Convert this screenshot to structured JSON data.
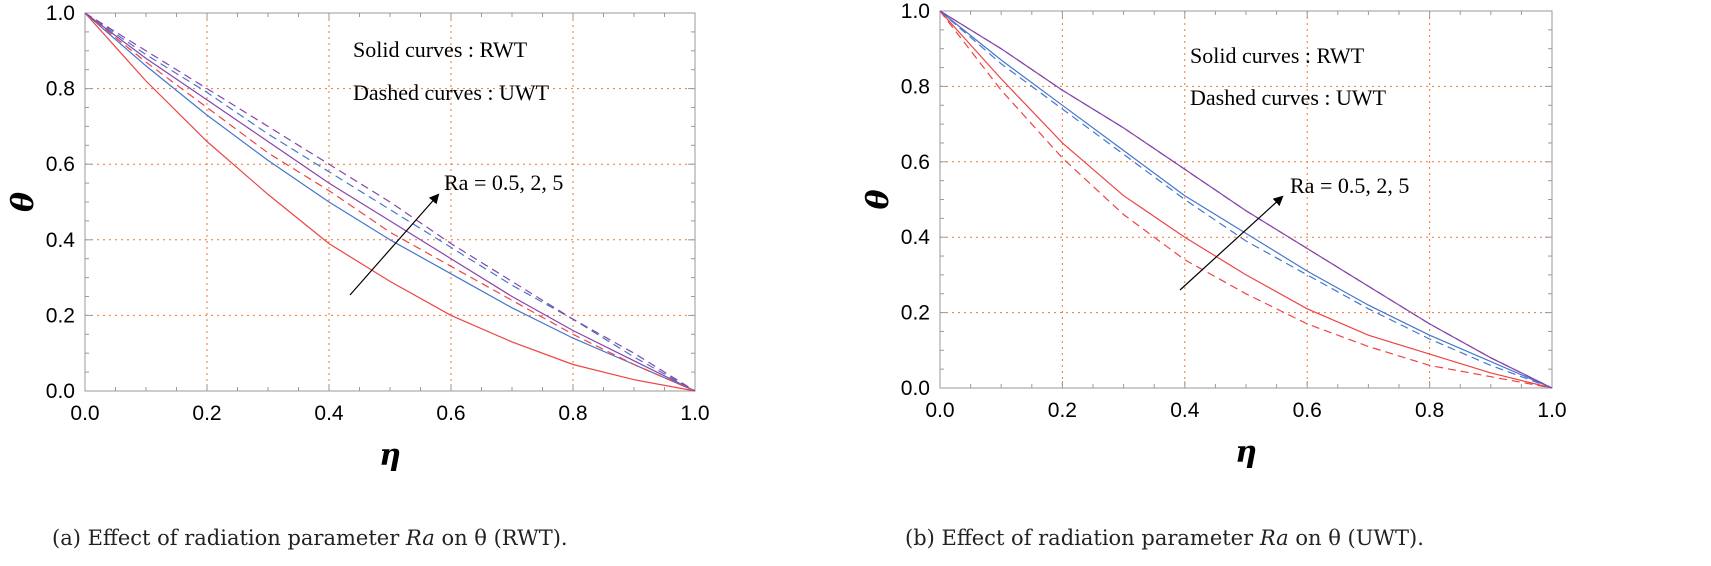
{
  "chart_data": [
    {
      "type": "line",
      "panel": "a",
      "xlabel": "η",
      "ylabel": "θ",
      "xlim": [
        0.0,
        1.0
      ],
      "ylim": [
        0.0,
        1.0
      ],
      "xticks": [
        "0.0",
        "0.2",
        "0.4",
        "0.6",
        "0.8",
        "1.0"
      ],
      "yticks": [
        "0.0",
        "0.2",
        "0.4",
        "0.6",
        "0.8",
        "1.0"
      ],
      "grid": true,
      "legend_lines": [
        "Solid curves : RWT",
        "Dashed curves : UWT"
      ],
      "annotation": "Ra = 0.5, 2, 5",
      "x": [
        0.0,
        0.1,
        0.2,
        0.3,
        0.4,
        0.5,
        0.6,
        0.7,
        0.8,
        0.9,
        1.0
      ],
      "series": [
        {
          "name": "RWT Ra=0.5",
          "style": "solid",
          "color": "#ee4444",
          "values": [
            1.0,
            0.82,
            0.66,
            0.52,
            0.39,
            0.29,
            0.2,
            0.13,
            0.07,
            0.03,
            0.0
          ]
        },
        {
          "name": "RWT Ra=2",
          "style": "solid",
          "color": "#4477cc",
          "values": [
            1.0,
            0.86,
            0.73,
            0.61,
            0.5,
            0.4,
            0.31,
            0.22,
            0.14,
            0.07,
            0.0
          ]
        },
        {
          "name": "RWT Ra=5",
          "style": "solid",
          "color": "#8844aa",
          "values": [
            1.0,
            0.88,
            0.77,
            0.66,
            0.55,
            0.45,
            0.35,
            0.25,
            0.16,
            0.08,
            0.0
          ]
        },
        {
          "name": "UWT Ra=0.5",
          "style": "dashed",
          "color": "#ee4444",
          "values": [
            1.0,
            0.87,
            0.75,
            0.63,
            0.53,
            0.42,
            0.33,
            0.24,
            0.15,
            0.07,
            0.0
          ]
        },
        {
          "name": "UWT Ra=2",
          "style": "dashed",
          "color": "#4477cc",
          "values": [
            1.0,
            0.89,
            0.79,
            0.68,
            0.58,
            0.48,
            0.38,
            0.28,
            0.19,
            0.09,
            0.0
          ]
        },
        {
          "name": "UWT Ra=5",
          "style": "dashed",
          "color": "#8844aa",
          "values": [
            1.0,
            0.9,
            0.8,
            0.7,
            0.6,
            0.5,
            0.39,
            0.29,
            0.19,
            0.1,
            0.0
          ]
        }
      ],
      "caption_prefix": "(a) Effect of radiation parameter",
      "caption_symbol": "Ra",
      "caption_suffix": "on θ (RWT)."
    },
    {
      "type": "line",
      "panel": "b",
      "xlabel": "η",
      "ylabel": "θ",
      "xlim": [
        0.0,
        1.0
      ],
      "ylim": [
        0.0,
        1.0
      ],
      "xticks": [
        "0.0",
        "0.2",
        "0.4",
        "0.6",
        "0.8",
        "1.0"
      ],
      "yticks": [
        "0.0",
        "0.2",
        "0.4",
        "0.6",
        "0.8",
        "1.0"
      ],
      "grid": true,
      "legend_lines": [
        "Solid curves : RWT",
        "Dashed curves : UWT"
      ],
      "annotation": "Ra = 0.5, 2, 5",
      "x": [
        0.0,
        0.1,
        0.2,
        0.3,
        0.4,
        0.5,
        0.6,
        0.7,
        0.8,
        0.9,
        1.0
      ],
      "series": [
        {
          "name": "RWT Ra=0.5",
          "style": "solid",
          "color": "#ee4444",
          "values": [
            1.0,
            0.82,
            0.65,
            0.51,
            0.4,
            0.3,
            0.21,
            0.14,
            0.09,
            0.04,
            0.0
          ]
        },
        {
          "name": "RWT Ra=2",
          "style": "solid",
          "color": "#4477cc",
          "values": [
            1.0,
            0.87,
            0.75,
            0.63,
            0.51,
            0.41,
            0.31,
            0.22,
            0.14,
            0.07,
            0.0
          ]
        },
        {
          "name": "RWT Ra=5",
          "style": "solid",
          "color": "#8844aa",
          "values": [
            1.0,
            0.9,
            0.79,
            0.69,
            0.58,
            0.47,
            0.37,
            0.27,
            0.17,
            0.08,
            0.0
          ]
        },
        {
          "name": "UWT Ra=0.5",
          "style": "dashed",
          "color": "#ee4444",
          "values": [
            1.0,
            0.79,
            0.61,
            0.46,
            0.34,
            0.25,
            0.17,
            0.11,
            0.06,
            0.03,
            0.0
          ]
        },
        {
          "name": "UWT Ra=2",
          "style": "dashed",
          "color": "#4477cc",
          "values": [
            1.0,
            0.86,
            0.74,
            0.62,
            0.5,
            0.39,
            0.3,
            0.21,
            0.13,
            0.06,
            0.0
          ]
        },
        {
          "name": "UWT Ra=5",
          "style": "dashed",
          "color": "#8844aa",
          "values": [
            1.0,
            0.9,
            0.79,
            0.69,
            0.58,
            0.47,
            0.37,
            0.27,
            0.17,
            0.08,
            0.0
          ]
        }
      ],
      "caption_prefix": "(b) Effect of radiation parameter",
      "caption_symbol": "Ra",
      "caption_suffix": "on θ (UWT)."
    }
  ],
  "colors": {
    "grid": "#ee7733",
    "axis": "#9a9a9a",
    "text": "#000000",
    "arrow": "#000000"
  }
}
